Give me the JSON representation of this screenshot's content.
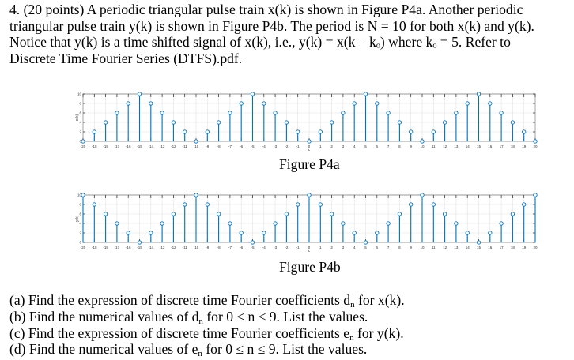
{
  "problem": {
    "line1": "4. (20 points) A periodic triangular pulse train x(k) is shown in Figure P4a. Another periodic",
    "line2": "triangular pulse train y(k) is shown in Figure P4b. The period is N = 10 for both x(k) and y(k).",
    "line3": "Notice that y(k) is a time shifted signal of x(k), i.e., y(k) = x(k – kₒ) where kₒ = 5. Refer to",
    "line4": "Discrete Time Fourier Series (DTFS).pdf."
  },
  "figures": {
    "a_caption": "Figure P4a",
    "b_caption": "Figure P4b"
  },
  "questions": {
    "a_pre": "(a) Find the expression of discrete time Fourier coefficients d",
    "a_sub": "n",
    "a_post": " for x(k).",
    "b_pre": "(b) Find the numerical values of d",
    "b_sub": "n",
    "b_post": " for 0 ≤ n ≤ 9. List the values.",
    "c_pre": "(c) Find the expression of discrete time Fourier coefficients e",
    "c_sub": "n",
    "c_post": " for y(k).",
    "d_pre": "(d) Find the numerical values of e",
    "d_sub": "n",
    "d_post": " for 0 ≤ n ≤ 9. List the values."
  },
  "chart_data": [
    {
      "type": "stem",
      "title": "Figure P4a",
      "xlabel": "k",
      "ylabel": "x(k)",
      "xlim": [
        -20,
        20
      ],
      "ylim": [
        0,
        10
      ],
      "x": [
        -20,
        -19,
        -18,
        -17,
        -16,
        -15,
        -14,
        -13,
        -12,
        -11,
        -10,
        -9,
        -8,
        -7,
        -6,
        -5,
        -4,
        -3,
        -2,
        -1,
        0,
        1,
        2,
        3,
        4,
        5,
        6,
        7,
        8,
        9,
        10,
        11,
        12,
        13,
        14,
        15,
        16,
        17,
        18,
        19,
        20
      ],
      "y": [
        0,
        2,
        4,
        6,
        8,
        10,
        8,
        6,
        4,
        2,
        0,
        2,
        4,
        6,
        8,
        10,
        8,
        6,
        4,
        2,
        0,
        2,
        4,
        6,
        8,
        10,
        8,
        6,
        4,
        2,
        0,
        2,
        4,
        6,
        8,
        10,
        8,
        6,
        4,
        2,
        0
      ],
      "grid": true
    },
    {
      "type": "stem",
      "title": "Figure P4b",
      "xlabel": "k",
      "ylabel": "y(k)",
      "xlim": [
        -20,
        20
      ],
      "ylim": [
        0,
        10
      ],
      "x": [
        -20,
        -19,
        -18,
        -17,
        -16,
        -15,
        -14,
        -13,
        -12,
        -11,
        -10,
        -9,
        -8,
        -7,
        -6,
        -5,
        -4,
        -3,
        -2,
        -1,
        0,
        1,
        2,
        3,
        4,
        5,
        6,
        7,
        8,
        9,
        10,
        11,
        12,
        13,
        14,
        15,
        16,
        17,
        18,
        19,
        20
      ],
      "y": [
        10,
        8,
        6,
        4,
        2,
        0,
        2,
        4,
        6,
        8,
        10,
        8,
        6,
        4,
        2,
        0,
        2,
        4,
        6,
        8,
        10,
        8,
        6,
        4,
        2,
        0,
        2,
        4,
        6,
        8,
        10,
        8,
        6,
        4,
        2,
        0,
        2,
        4,
        6,
        8,
        10
      ],
      "grid": true
    }
  ]
}
